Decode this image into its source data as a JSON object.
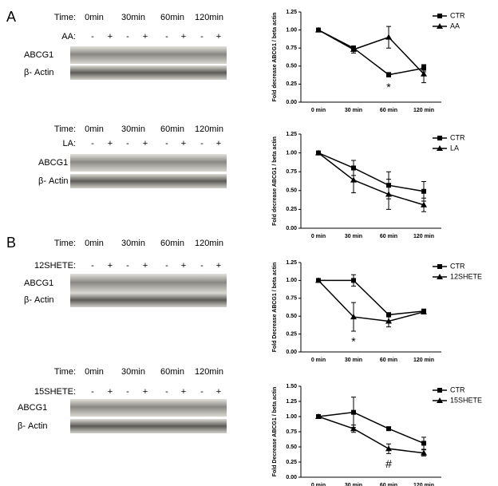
{
  "panel_labels": [
    "A",
    "B"
  ],
  "blots": [
    {
      "time_label": "Time:",
      "times": [
        "0min",
        "30min",
        "60min",
        "120min"
      ],
      "treatment": "AA:",
      "signs": [
        "-",
        "+",
        "-",
        "+",
        "-",
        "+",
        "-",
        "+"
      ],
      "rows": [
        "ABCG1",
        "β- Actin"
      ]
    },
    {
      "time_label": "Time:",
      "times": [
        "0min",
        "30min",
        "60min",
        "120min"
      ],
      "treatment": "LA:",
      "signs": [
        "-",
        "+",
        "-",
        "+",
        "-",
        "+",
        "-",
        "+"
      ],
      "rows": [
        "ABCG1",
        "β- Actin"
      ]
    },
    {
      "time_label": "Time:",
      "times": [
        "0min",
        "30min",
        "60min",
        "120min"
      ],
      "treatment": "12SHETE:",
      "signs": [
        "-",
        "+",
        "-",
        "+",
        "-",
        "+",
        "-",
        "+"
      ],
      "rows": [
        "ABCG1",
        "β- Actin"
      ]
    },
    {
      "time_label": "Time:",
      "times": [
        "0min",
        "30min",
        "60min",
        "120min"
      ],
      "treatment": "15SHETE:",
      "signs": [
        "-",
        "+",
        "-",
        "+",
        "-",
        "+",
        "-",
        "+"
      ],
      "rows": [
        "ABCG1",
        "β- Actin"
      ]
    }
  ],
  "chart_data": [
    {
      "type": "line",
      "ylabel": "Fold decrease ABCG1 / beta actin",
      "categories": [
        "0 min",
        "30 min",
        "60 min",
        "120 min"
      ],
      "ylim": [
        0,
        1.25
      ],
      "yticks": [
        {
          "value": 0,
          "label": "0.00"
        },
        {
          "value": 0.25,
          "label": "0.25"
        },
        {
          "value": 0.5,
          "label": "0.50"
        },
        {
          "value": 0.75,
          "label": "0.75"
        },
        {
          "value": 1,
          "label": "1.00"
        },
        {
          "value": 1.25,
          "label": "1.25"
        }
      ],
      "series": [
        {
          "name": "CTR",
          "color": "#000000",
          "marker": "square",
          "values": [
            1.0,
            0.75,
            0.38,
            0.47
          ],
          "errors": [
            0,
            0.03,
            0.03,
            0.05
          ]
        },
        {
          "name": "AA",
          "color": "#000000",
          "marker": "triangle",
          "values": [
            1.0,
            0.73,
            0.9,
            0.39
          ],
          "errors": [
            0,
            0.05,
            0.15,
            0.12
          ]
        }
      ],
      "annotations": [
        {
          "text": "*",
          "x": "60 min"
        }
      ]
    },
    {
      "type": "line",
      "ylabel": "Fold decrease ABCG1 / beta actin",
      "categories": [
        "0 min",
        "30 min",
        "60 min",
        "120 min"
      ],
      "ylim": [
        0,
        1.25
      ],
      "yticks": [
        {
          "value": 0,
          "label": "0.00"
        },
        {
          "value": 0.25,
          "label": "0.25"
        },
        {
          "value": 0.5,
          "label": "0.50"
        },
        {
          "value": 0.75,
          "label": "0.75"
        },
        {
          "value": 1,
          "label": "1.00"
        },
        {
          "value": 1.25,
          "label": "1.25"
        }
      ],
      "series": [
        {
          "name": "CTR",
          "color": "#000000",
          "marker": "square",
          "values": [
            1.0,
            0.8,
            0.57,
            0.49
          ],
          "errors": [
            0,
            0.1,
            0.18,
            0.13
          ]
        },
        {
          "name": "LA",
          "color": "#000000",
          "marker": "triangle",
          "values": [
            1.0,
            0.64,
            0.45,
            0.31
          ],
          "errors": [
            0,
            0.17,
            0.2,
            0.09
          ]
        }
      ],
      "annotations": []
    },
    {
      "type": "line",
      "ylabel": "Fold Decrease ABCG1 / beta actin",
      "categories": [
        "0 min",
        "30 min",
        "60 min",
        "120 min"
      ],
      "ylim": [
        0,
        1.25
      ],
      "yticks": [
        {
          "value": 0,
          "label": "0.00"
        },
        {
          "value": 0.25,
          "label": "0.25"
        },
        {
          "value": 0.5,
          "label": "0.50"
        },
        {
          "value": 0.75,
          "label": "0.75"
        },
        {
          "value": 1,
          "label": "1.00"
        },
        {
          "value": 1.25,
          "label": "1.25"
        }
      ],
      "series": [
        {
          "name": "CTR",
          "color": "#000000",
          "marker": "square",
          "values": [
            1.0,
            1.0,
            0.52,
            0.57
          ],
          "errors": [
            0,
            0.08,
            0.03,
            0.03
          ]
        },
        {
          "name": "12SHETE",
          "color": "#000000",
          "marker": "triangle",
          "values": [
            1.0,
            0.49,
            0.43,
            0.56
          ],
          "errors": [
            0,
            0.2,
            0.08,
            0.03
          ]
        }
      ],
      "annotations": [
        {
          "text": "*",
          "x": "30 min"
        }
      ]
    },
    {
      "type": "line",
      "ylabel": "Fold Decrease ABCG1 / beta actin",
      "categories": [
        "0 min",
        "30 min",
        "60 min",
        "120 min"
      ],
      "ylim": [
        0,
        1.5
      ],
      "yticks": [
        {
          "value": 0,
          "label": "0.00"
        },
        {
          "value": 0.25,
          "label": "0.25"
        },
        {
          "value": 0.5,
          "label": "0.50"
        },
        {
          "value": 0.75,
          "label": "0.75"
        },
        {
          "value": 1,
          "label": "1.00"
        },
        {
          "value": 1.25,
          "label": "1.25"
        },
        {
          "value": 1.5,
          "label": "1.50"
        }
      ],
      "series": [
        {
          "name": "CTR",
          "color": "#000000",
          "marker": "square",
          "values": [
            1.0,
            1.07,
            0.8,
            0.56
          ],
          "errors": [
            0,
            0.25,
            0.03,
            0.1
          ]
        },
        {
          "name": "15SHETE",
          "color": "#000000",
          "marker": "triangle",
          "values": [
            1.0,
            0.8,
            0.47,
            0.4
          ],
          "errors": [
            0,
            0.06,
            0.08,
            0.05
          ]
        }
      ],
      "annotations": [
        {
          "text": "#",
          "x": "60 min"
        }
      ]
    }
  ]
}
